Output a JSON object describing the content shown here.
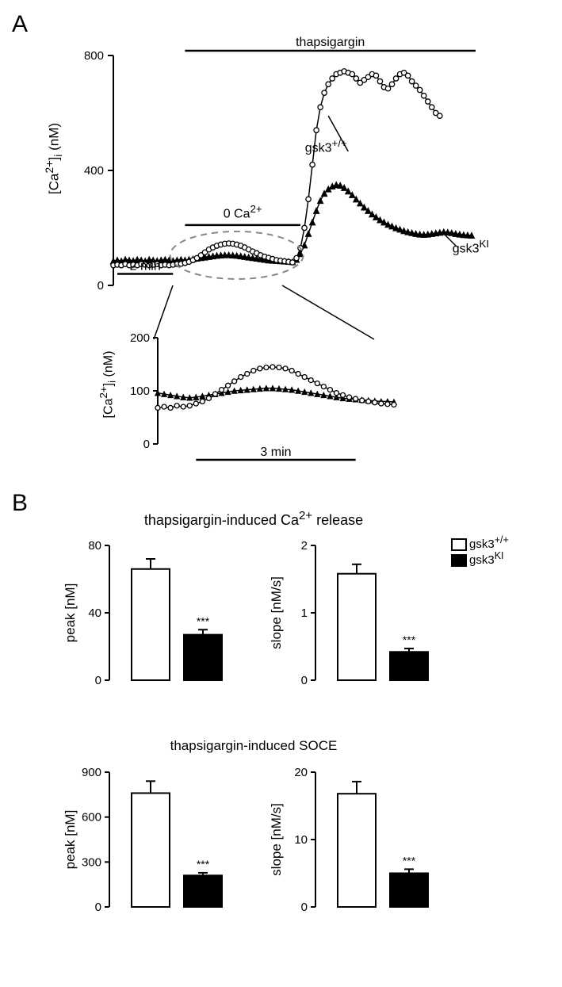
{
  "panelA": {
    "label": "A",
    "main": {
      "ylabel_html": "[Ca<sup>2+</sup>]<sub>i</sub> (nM)",
      "yticks": [
        0,
        400,
        800
      ],
      "thapsigargin_label": "thapsigargin",
      "zero_ca_label_html": "0 Ca<sup>2+</sup>",
      "scale_bar_label": "2 min",
      "gsk3_wt_label_html": "gsk3<sup>+/+</sup>",
      "gsk3_ki_label_html": "gsk3<sup>KI</sup>",
      "background_color": "#ffffff",
      "series_wt": {
        "marker": "open-circle",
        "color": "#ffffff",
        "stroke": "#000000",
        "x": [
          0,
          2,
          4,
          6,
          8,
          10,
          12,
          14,
          16,
          18,
          20,
          22,
          24,
          26,
          28,
          30,
          32,
          34,
          36,
          38,
          40,
          42,
          44,
          46,
          48,
          50,
          52,
          54,
          56,
          58,
          60,
          62,
          64,
          66,
          68,
          70,
          72,
          74,
          76,
          78,
          80,
          82,
          84,
          86,
          88,
          90,
          92,
          94,
          96,
          98,
          100,
          102,
          104,
          106,
          108,
          110,
          112,
          114,
          116,
          118,
          120,
          122,
          124,
          126,
          128,
          130,
          132,
          134,
          136,
          138,
          140,
          142,
          144,
          146,
          148,
          150,
          152,
          154,
          156,
          158,
          160,
          162,
          164
        ],
        "y": [
          70,
          72,
          70,
          74,
          70,
          72,
          70,
          74,
          72,
          70,
          72,
          74,
          70,
          72,
          70,
          72,
          74,
          75,
          78,
          82,
          88,
          95,
          105,
          115,
          125,
          132,
          138,
          142,
          145,
          146,
          145,
          142,
          138,
          132,
          125,
          118,
          112,
          105,
          100,
          96,
          92,
          88,
          86,
          84,
          82,
          80,
          95,
          130,
          200,
          300,
          420,
          540,
          620,
          670,
          700,
          720,
          735,
          740,
          745,
          740,
          735,
          720,
          705,
          715,
          725,
          735,
          730,
          710,
          690,
          685,
          700,
          720,
          735,
          740,
          730,
          710,
          695,
          680,
          660,
          640,
          620,
          600,
          590
        ]
      },
      "series_ki": {
        "marker": "filled-triangle",
        "color": "#000000",
        "x": [
          0,
          2,
          4,
          6,
          8,
          10,
          12,
          14,
          16,
          18,
          20,
          22,
          24,
          26,
          28,
          30,
          32,
          34,
          36,
          38,
          40,
          42,
          44,
          46,
          48,
          50,
          52,
          54,
          56,
          58,
          60,
          62,
          64,
          66,
          68,
          70,
          72,
          74,
          76,
          78,
          80,
          82,
          84,
          86,
          88,
          90,
          92,
          94,
          96,
          98,
          100,
          102,
          104,
          106,
          108,
          110,
          112,
          114,
          116,
          118,
          120,
          122,
          124,
          126,
          128,
          130,
          132,
          134,
          136,
          138,
          140,
          142,
          144,
          146,
          148,
          150,
          152,
          154,
          156,
          158,
          160,
          162,
          164,
          166,
          168,
          170,
          172,
          174,
          176,
          178,
          180
        ],
        "y": [
          85,
          88,
          85,
          90,
          88,
          86,
          90,
          88,
          85,
          90,
          88,
          86,
          88,
          90,
          88,
          86,
          88,
          90,
          88,
          90,
          92,
          94,
          96,
          98,
          100,
          102,
          104,
          105,
          106,
          106,
          105,
          104,
          102,
          100,
          98,
          96,
          94,
          92,
          90,
          88,
          87,
          86,
          85,
          84,
          83,
          82,
          90,
          110,
          140,
          180,
          220,
          260,
          295,
          320,
          335,
          345,
          350,
          348,
          340,
          328,
          315,
          300,
          286,
          272,
          260,
          248,
          238,
          228,
          220,
          212,
          206,
          200,
          195,
          190,
          186,
          183,
          180,
          178,
          177,
          178,
          180,
          182,
          184,
          186,
          185,
          183,
          180,
          178,
          176,
          175,
          174
        ]
      }
    },
    "inset": {
      "ylabel_html": "[Ca<sup>2+</sup>]<sub>i</sub> (nM)",
      "yticks": [
        0,
        100,
        200
      ],
      "scale_bar_label": "3 min",
      "series_wt": {
        "x": [
          0,
          2,
          4,
          6,
          8,
          10,
          12,
          14,
          16,
          18,
          20,
          22,
          24,
          26,
          28,
          30,
          32,
          34,
          36,
          38,
          40,
          42,
          44,
          46,
          48,
          50,
          52,
          54,
          56,
          58,
          60,
          62,
          64,
          66,
          68,
          70,
          72,
          74
        ],
        "y": [
          68,
          70,
          68,
          72,
          70,
          72,
          76,
          80,
          86,
          94,
          102,
          110,
          118,
          126,
          132,
          138,
          142,
          144,
          145,
          144,
          142,
          138,
          132,
          126,
          120,
          114,
          108,
          102,
          96,
          92,
          88,
          85,
          82,
          80,
          78,
          76,
          75,
          74
        ]
      },
      "series_ki": {
        "x": [
          0,
          2,
          4,
          6,
          8,
          10,
          12,
          14,
          16,
          18,
          20,
          22,
          24,
          26,
          28,
          30,
          32,
          34,
          36,
          38,
          40,
          42,
          44,
          46,
          48,
          50,
          52,
          54,
          56,
          58,
          60,
          62,
          64,
          66,
          68,
          70,
          72,
          74
        ],
        "y": [
          96,
          94,
          92,
          90,
          88,
          87,
          88,
          90,
          92,
          94,
          96,
          98,
          100,
          101,
          102,
          103,
          104,
          105,
          105,
          104,
          103,
          102,
          100,
          98,
          96,
          94,
          92,
          90,
          88,
          86,
          85,
          84,
          83,
          82,
          81,
          80,
          80,
          79
        ]
      }
    }
  },
  "panelB": {
    "label": "B",
    "section1_title_html": "thapsigargin-induced Ca<sup>2+</sup> release",
    "section2_title": "thapsigargin-induced SOCE",
    "legend": {
      "wt_html": "gsk3<sup>+/+</sup>",
      "ki_html": "gsk3<sup>KI</sup>"
    },
    "charts": {
      "release_peak": {
        "ylabel": "peak [nM]",
        "yticks": [
          0,
          40,
          80
        ],
        "wt": {
          "val": 66,
          "err": 6
        },
        "ki": {
          "val": 27,
          "err": 3
        },
        "sig": "***"
      },
      "release_slope": {
        "ylabel": "slope [nM/s]",
        "yticks": [
          0,
          1,
          2
        ],
        "wt": {
          "val": 1.58,
          "err": 0.14
        },
        "ki": {
          "val": 0.42,
          "err": 0.05
        },
        "sig": "***"
      },
      "soce_peak": {
        "ylabel": "peak [nM]",
        "yticks": [
          0,
          300,
          600,
          900
        ],
        "wt": {
          "val": 760,
          "err": 80
        },
        "ki": {
          "val": 210,
          "err": 18
        },
        "sig": "***"
      },
      "soce_slope": {
        "ylabel": "slope [nM/s]",
        "yticks": [
          0,
          10,
          20
        ],
        "wt": {
          "val": 16.8,
          "err": 1.8
        },
        "ki": {
          "val": 5.0,
          "err": 0.6
        },
        "sig": "***"
      }
    }
  }
}
